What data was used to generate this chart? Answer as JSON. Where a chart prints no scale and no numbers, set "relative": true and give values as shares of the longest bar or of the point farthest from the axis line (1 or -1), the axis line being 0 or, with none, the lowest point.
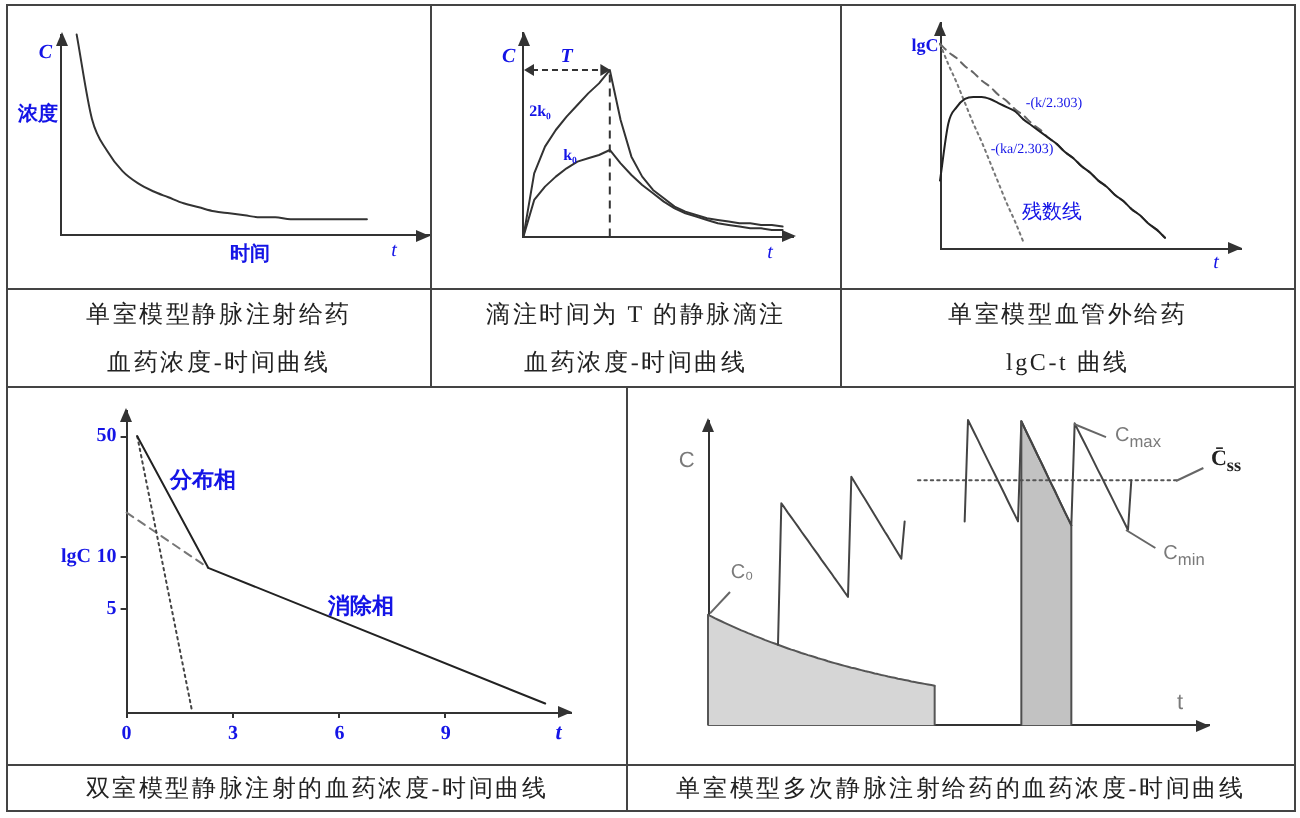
{
  "chart_data": [
    {
      "type": "line",
      "title": "单室模型静脉注射给药",
      "subtitle": "血药浓度-时间曲线",
      "xlabel": "t",
      "ylabel": "C",
      "annotations": [
        "浓度",
        "时间"
      ],
      "relative": true,
      "categories": [
        null,
        null,
        null,
        null,
        null,
        null,
        null,
        null,
        null,
        null,
        null,
        null,
        null,
        null,
        null,
        null,
        null,
        null,
        null,
        null,
        null,
        null,
        null,
        null,
        null
      ],
      "series": [
        {
          "color": "#333333",
          "values": [
            null,
            1,
            0.58,
            0.42,
            0.32,
            0.26,
            0.22,
            0.19,
            0.16,
            0.14,
            0.12,
            0.11,
            0.1,
            0.09,
            0.09,
            0.08,
            0.08,
            0.08,
            0.08,
            0.08,
            0.08,
            null,
            null,
            null,
            null
          ]
        }
      ]
    },
    {
      "type": "line",
      "title": "滴注时间为 T 的静脉滴注",
      "subtitle": "血药浓度-时间曲线",
      "xlabel": "t",
      "ylabel": "C",
      "annotations": [
        "T"
      ],
      "relative": true,
      "categories": [
        null,
        null,
        null,
        null,
        null,
        null,
        null,
        null,
        null,
        null,
        null,
        null,
        null,
        null,
        null,
        null,
        null,
        null,
        null,
        null,
        null,
        null,
        null,
        null,
        null,
        null
      ],
      "series": [
        {
          "name": "2k₀",
          "color": "#333333",
          "values": [
            0,
            0.38,
            0.54,
            0.64,
            0.72,
            0.79,
            0.86,
            0.92,
            1,
            0.7,
            0.48,
            0.36,
            0.28,
            0.23,
            0.18,
            0.15,
            0.13,
            0.11,
            0.1,
            0.09,
            0.08,
            0.08,
            0.07,
            0.07,
            0.06,
            null
          ]
        },
        {
          "name": "k₀",
          "color": "#333333",
          "values": [
            0,
            0.22,
            0.3,
            0.36,
            0.41,
            0.45,
            0.47,
            0.49,
            0.52,
            0.44,
            0.37,
            0.31,
            0.26,
            0.21,
            0.17,
            0.14,
            0.12,
            0.1,
            0.08,
            0.07,
            0.06,
            0.05,
            0.05,
            0.04,
            0.04,
            null
          ]
        }
      ]
    },
    {
      "type": "line",
      "title": "单室模型血管外给药",
      "subtitle": "lgC-t 曲线",
      "xlabel": "t",
      "ylabel": "lgC",
      "annotations": [
        "残数线"
      ],
      "relative": true,
      "categories": [
        null,
        null,
        null,
        null,
        null,
        null,
        null,
        null,
        null,
        null,
        null,
        null,
        null,
        null,
        null,
        null,
        null,
        null,
        null,
        null,
        null,
        null,
        null,
        null,
        null,
        null,
        null,
        null,
        null,
        null,
        null,
        null,
        null,
        null,
        null,
        null,
        null
      ],
      "series": [
        {
          "color": "#222222",
          "values": [
            0.33,
            0.61,
            0.69,
            0.73,
            0.74,
            0.74,
            0.73,
            0.71,
            0.69,
            0.67,
            0.63,
            0.6,
            0.57,
            0.54,
            0.51,
            0.47,
            0.44,
            0.4,
            0.37,
            0.33,
            0.3,
            0.26,
            0.23,
            0.19,
            0.16,
            0.12,
            0.09,
            0.05,
            null,
            null,
            null,
            null,
            null,
            null,
            null,
            null,
            null
          ]
        },
        {
          "name": "-(k/2.303)",
          "color": "#666666",
          "line_style": "dashed",
          "values": [
            1,
            0.96,
            0.93,
            0.89,
            0.86,
            0.82,
            0.79,
            0.75,
            0.72,
            0.68,
            0.65,
            0.61,
            0.58,
            0.54,
            0.51,
            0.47,
            0.44,
            0.4,
            0.37,
            0.33,
            0.3,
            0.26,
            0.23,
            0.19,
            0.16,
            0.12,
            0.09,
            0.05,
            null,
            null,
            null,
            null,
            null,
            null,
            null,
            null,
            null
          ]
        },
        {
          "name": "-(ka/2.303)",
          "color": "#777777",
          "line_style": "dotted",
          "values": [
            1,
            0.9,
            0.81,
            0.71,
            0.61,
            0.52,
            0.42,
            0.32,
            0.22,
            0.13,
            0.03,
            null,
            null,
            null,
            null,
            null,
            null,
            null,
            null,
            null,
            null,
            null,
            null,
            null,
            null,
            null,
            null,
            null,
            null,
            null,
            null,
            null,
            null,
            null,
            null,
            null,
            null
          ]
        }
      ]
    },
    {
      "type": "line",
      "title": "双室模型静脉注射的血药浓度-时间曲线",
      "xlabel": "t",
      "ylabel": "lgC",
      "log": "y",
      "xlim": [
        0,
        12.5
      ],
      "xticks": [
        0,
        3,
        6,
        9
      ],
      "ylim": [
        1.25,
        71
      ],
      "yticks": [
        5,
        10,
        50
      ],
      "series": [
        {
          "color": "#222222",
          "x": [
            0.3,
            2.3,
            11.8
          ],
          "values": [
            50,
            8.6,
            1.4
          ]
        },
        {
          "color": "#444444",
          "line_style": "dotted",
          "x": [
            0.3,
            1.85
          ],
          "values": [
            50,
            1.25
          ]
        },
        {
          "color": "#777777",
          "line_style": "dashed",
          "x": [
            0,
            2.3
          ],
          "values": [
            18,
            8.6
          ]
        }
      ],
      "annotations": [
        {
          "text": "分布相",
          "x": 1,
          "y": 27
        },
        {
          "text": "消除相",
          "x": 6.6,
          "y": 3.8
        }
      ]
    },
    {
      "type": "line",
      "title": "单室模型多次静脉注射给药的血药浓度-时间曲线",
      "xlabel": "t",
      "ylabel": "C",
      "annotations": [
        "C₀",
        "C$_{max}$",
        "C$_{min}$"
      ],
      "relative": true,
      "categories": [
        null,
        null,
        null,
        null,
        null,
        null,
        null,
        null,
        null,
        null,
        null,
        null,
        null,
        null,
        null,
        null,
        null,
        null,
        null,
        null,
        null,
        null,
        null,
        null,
        null,
        null,
        null,
        null,
        null,
        null,
        null,
        null,
        null,
        null,
        null,
        null,
        null,
        null,
        null,
        null,
        null,
        null,
        null,
        null,
        null,
        null,
        null,
        null,
        null,
        null,
        null,
        null,
        null,
        null,
        null,
        null,
        null,
        null,
        null,
        null,
        null,
        null,
        null,
        null,
        null,
        null,
        null,
        null,
        null,
        null,
        null,
        null,
        null,
        null,
        null,
        null,
        null,
        null,
        null,
        null,
        null,
        null,
        null,
        null,
        null,
        null,
        null,
        null,
        null,
        null,
        null,
        null,
        null,
        null,
        null,
        null,
        null,
        null,
        null,
        null,
        null,
        null,
        null,
        null,
        null,
        null,
        null,
        null,
        null,
        null,
        null,
        null,
        null,
        null,
        null,
        null,
        null,
        null,
        null,
        null,
        null,
        null,
        null,
        null,
        null,
        null,
        null,
        null,
        null,
        null,
        null,
        null,
        null,
        null,
        null,
        null,
        null,
        null,
        null,
        null,
        null,
        null,
        null,
        null,
        null,
        null,
        null,
        null,
        null,
        null,
        null
      ],
      "series": [
        {
          "type": "area",
          "color": "#d6d6d6",
          "values": [
            0.362,
            0.357,
            0.351,
            0.346,
            0.341,
            0.336,
            0.331,
            0.326,
            0.321,
            0.316,
            0.311,
            0.307,
            0.302,
            0.298,
            0.293,
            0.289,
            0.285,
            0.28,
            0.276,
            0.272,
            0.268,
            0.264,
            0.26,
            0.256,
            0.252,
            0.248,
            0.245,
            0.241,
            0.237,
            0.234,
            0.23,
            0.227,
            0.224,
            0.22,
            0.217,
            0.214,
            0.21,
            0.207,
            0.204,
            0.201,
            0.198,
            0.195,
            0.192,
            0.189,
            0.187,
            0.184,
            0.181,
            0.178,
            0.176,
            0.173,
            0.17,
            0.168,
            0.165,
            0.163,
            0.16,
            0.158,
            0.156,
            0.153,
            0.151,
            0.149,
            0.147,
            0.144,
            0.142,
            0.14,
            0.138,
            0.136,
            0.134,
            0.132,
            0.13,
            null,
            null,
            null,
            null,
            null,
            null,
            null,
            null,
            null,
            null,
            null,
            null,
            null,
            null,
            null,
            null,
            null,
            null,
            null,
            null,
            null,
            null,
            null,
            null,
            null,
            null,
            null,
            null,
            null,
            null,
            null,
            null,
            null,
            null,
            null,
            null,
            null,
            null,
            null,
            null,
            null,
            null,
            null,
            null,
            null,
            null,
            null,
            null,
            null,
            null,
            null,
            null,
            null,
            null,
            null,
            null,
            null,
            null,
            null,
            null,
            null,
            null,
            null,
            null,
            null,
            null,
            null,
            null,
            null,
            null,
            null,
            null,
            null,
            null,
            null,
            null,
            null,
            null,
            null,
            null,
            null,
            null
          ]
        },
        {
          "color": "#444444",
          "values": [
            null,
            null,
            null,
            null,
            null,
            null,
            null,
            null,
            null,
            null,
            null,
            null,
            null,
            null,
            null,
            null,
            null,
            null,
            null,
            null,
            null,
            0.264,
            0.727,
            0.712,
            0.696,
            0.681,
            0.666,
            0.651,
            0.635,
            0.62,
            0.605,
            0.589,
            0.574,
            0.559,
            0.543,
            0.528,
            0.513,
            0.498,
            0.482,
            0.467,
            0.452,
            0.436,
            0.421,
            0.814,
            0.796,
            0.778,
            0.76,
            0.743,
            0.725,
            0.707,
            0.689,
            0.671,
            0.653,
            0.635,
            0.618,
            0.6,
            0.582,
            0.564,
            0.546,
            0.668,
            null,
            null,
            null,
            null,
            null,
            null,
            null,
            null,
            null,
            null,
            null,
            null,
            null,
            null,
            null,
            null,
            null,
            0.668,
            1,
            0.978,
            0.956,
            0.934,
            0.911,
            0.889,
            0.867,
            0.845,
            0.823,
            0.801,
            0.779,
            0.757,
            0.734,
            0.712,
            0.69,
            0.668,
            0.996,
            0.973,
            0.95,
            0.928,
            0.905,
            0.882,
            0.86,
            0.837,
            0.814,
            0.791,
            0.769,
            0.746,
            0.723,
            0.7,
            0.678,
            0.655,
            0.989,
            0.967,
            0.945,
            0.924,
            0.902,
            0.88,
            0.858,
            0.836,
            0.815,
            0.793,
            0.771,
            0.749,
            0.727,
            0.705,
            0.684,
            0.662,
            0.64,
            0.803,
            null,
            null,
            null,
            null,
            null,
            null,
            null,
            null,
            null,
            null,
            null,
            null,
            null,
            null,
            null,
            null,
            null,
            null,
            null,
            null,
            null,
            null,
            null
          ]
        },
        {
          "type": "area",
          "color": "#c2c2c2",
          "values": [
            null,
            null,
            null,
            null,
            null,
            null,
            null,
            null,
            null,
            null,
            null,
            null,
            null,
            null,
            null,
            null,
            null,
            null,
            null,
            null,
            null,
            null,
            null,
            null,
            null,
            null,
            null,
            null,
            null,
            null,
            null,
            null,
            null,
            null,
            null,
            null,
            null,
            null,
            null,
            null,
            null,
            null,
            null,
            null,
            null,
            null,
            null,
            null,
            null,
            null,
            null,
            null,
            null,
            null,
            null,
            null,
            null,
            null,
            null,
            null,
            null,
            null,
            null,
            null,
            null,
            null,
            null,
            null,
            null,
            null,
            null,
            null,
            null,
            null,
            null,
            null,
            null,
            null,
            null,
            null,
            null,
            null,
            null,
            null,
            null,
            null,
            null,
            null,
            null,
            null,
            null,
            null,
            null,
            null,
            0.996,
            0.973,
            0.95,
            0.928,
            0.905,
            0.882,
            0.86,
            0.837,
            0.814,
            0.791,
            0.769,
            0.746,
            0.723,
            0.7,
            0.678,
            0.655,
            null,
            null,
            null,
            null,
            null,
            null,
            null,
            null,
            null,
            null,
            null,
            null,
            null,
            null,
            null,
            null,
            null,
            null,
            null,
            null,
            null,
            null,
            null,
            null,
            null,
            null,
            null,
            null,
            null,
            null,
            null,
            null,
            null,
            null,
            null,
            null,
            null,
            null,
            null,
            null,
            null
          ]
        },
        {
          "name": "C̄$_{ss}$",
          "color": "#555555",
          "line_style": "dotted",
          "values": [
            null,
            null,
            null,
            null,
            null,
            null,
            null,
            null,
            null,
            null,
            null,
            null,
            null,
            null,
            null,
            null,
            null,
            null,
            null,
            null,
            null,
            null,
            null,
            null,
            null,
            null,
            null,
            null,
            null,
            null,
            null,
            null,
            null,
            null,
            null,
            null,
            null,
            null,
            null,
            null,
            null,
            null,
            null,
            null,
            null,
            null,
            null,
            null,
            null,
            null,
            null,
            null,
            null,
            null,
            null,
            null,
            null,
            null,
            null,
            null,
            null,
            null,
            null,
            0.803,
            0.803,
            0.803,
            0.803,
            0.803,
            0.803,
            0.803,
            0.803,
            0.803,
            0.803,
            0.803,
            0.803,
            0.803,
            0.803,
            0.803,
            0.803,
            0.803,
            0.803,
            0.803,
            0.803,
            0.803,
            0.803,
            0.803,
            0.803,
            0.803,
            0.803,
            0.803,
            0.803,
            0.803,
            0.803,
            0.803,
            0.803,
            0.803,
            0.803,
            0.803,
            0.803,
            0.803,
            0.803,
            0.803,
            0.803,
            0.803,
            0.803,
            0.803,
            0.803,
            0.803,
            0.803,
            0.803,
            0.803,
            0.803,
            0.803,
            0.803,
            0.803,
            0.803,
            0.803,
            0.803,
            0.803,
            0.803,
            0.803,
            0.803,
            0.803,
            0.803,
            0.803,
            0.803,
            0.803,
            0.803,
            0.803,
            0.803,
            0.803,
            0.803,
            0.803,
            0.803,
            0.803,
            0.803,
            0.803,
            0.803,
            0.803,
            0.803,
            0.803,
            0.803,
            null,
            null,
            null,
            null,
            null,
            null,
            null,
            null,
            null
          ]
        }
      ]
    }
  ]
}
